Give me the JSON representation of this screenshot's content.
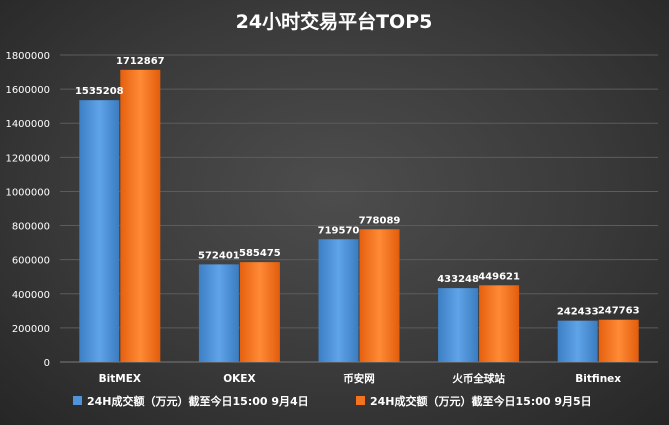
{
  "chart_data": {
    "type": "bar",
    "title": "24小时交易平台TOP5",
    "categories": [
      "BitMEX",
      "OKEX",
      "币安网",
      "火币全球站",
      "Bitfinex"
    ],
    "series": [
      {
        "name": "24H成交额（万元）截至今日15:00 9月4日",
        "color": "#4f93d8",
        "values": [
          1535208,
          572401,
          719570,
          433248,
          242433
        ]
      },
      {
        "name": "24H成交额（万元）截至今日15:00 9月5日",
        "color": "#f4731f",
        "values": [
          1712867,
          585475,
          778089,
          449621,
          247763
        ]
      }
    ],
    "ylim": [
      0,
      1800000
    ],
    "yticks": [
      "0",
      "200000",
      "400000",
      "600000",
      "800000",
      "1000000",
      "1200000",
      "1400000",
      "1600000",
      "1800000"
    ],
    "grid": true,
    "legend_position": "bottom"
  }
}
